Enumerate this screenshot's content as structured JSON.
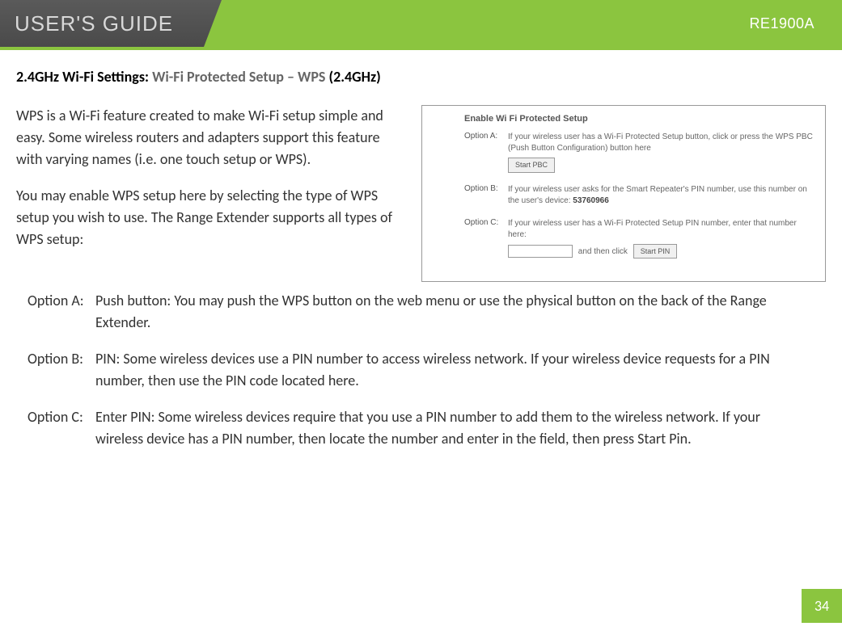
{
  "header": {
    "title": "USER'S GUIDE",
    "model": "RE1900A",
    "accent_color": "#8bc53f",
    "header_bg": "#4a4a4a"
  },
  "section": {
    "prefix": "2.4GHz Wi-Fi Settings: ",
    "gray_part": "Wi-Fi Protected Setup – WPS ",
    "suffix": "(2.4GHz)"
  },
  "intro": {
    "p1": "WPS is a Wi-Fi feature created to make Wi-Fi setup simple and easy. Some wireless routers and adapters support this feature with varying names (i.e. one touch setup or WPS).",
    "p2": "You may enable WPS setup here by selecting the type of WPS setup you wish to use. The Range Extender supports all types of WPS setup:"
  },
  "wps_panel": {
    "title": "Enable Wi Fi Protected Setup",
    "optionA": {
      "label": "Option A:",
      "text": "If your wireless user has a Wi-Fi Protected Setup button, click or press the WPS PBC (Push Button Configuration) button here",
      "button": "Start PBC"
    },
    "optionB": {
      "label": "Option B:",
      "text": "If your wireless user asks for the Smart Repeater's PIN number, use this number on the user's device: ",
      "pin": "53760966"
    },
    "optionC": {
      "label": "Option C:",
      "text": "If your wireless user has a Wi-Fi Protected Setup PIN number, enter that number here:",
      "inline": "and then click",
      "button": "Start PIN"
    }
  },
  "options": {
    "a": {
      "label": "Option A:",
      "text": "Push button: You may push the WPS button on the web menu or use the physical button on the back of the Range Extender."
    },
    "b": {
      "label": "Option B:",
      "text": "PIN: Some wireless devices use a PIN number to access wireless network. If your wireless device requests for a PIN number, then use the PIN code located here."
    },
    "c": {
      "label": "Option C:",
      "text": "Enter PIN: Some wireless devices require that you use a PIN number to add them to the wireless network. If your wireless device has a PIN number, then locate the number and enter in the field, then press Start Pin."
    }
  },
  "page_number": "34"
}
